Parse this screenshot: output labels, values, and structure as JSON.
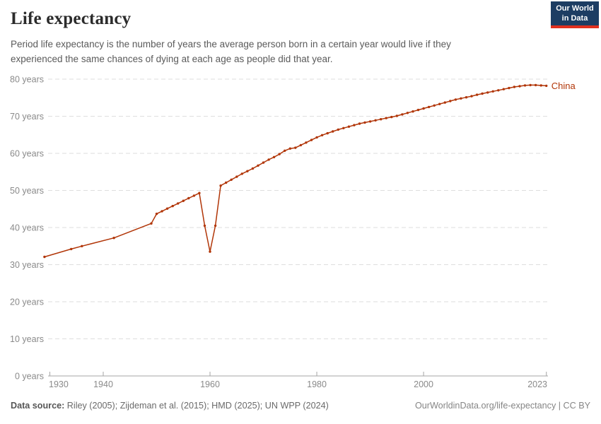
{
  "header": {
    "title": "Life expectancy",
    "subtitle_line1": "Period life expectancy is the number of years the average person born in a certain year would live if they",
    "subtitle_line2": "experienced the same chances of dying at each age as people did that year.",
    "logo": {
      "line1": "Our World",
      "line2": "in Data"
    }
  },
  "colors": {
    "accent": "#b13507",
    "logo_bg": "#1d3d63",
    "logo_accent": "#e0301e",
    "gridline": "#dedede",
    "axis": "#a5a5a5",
    "tick_label": "#8a8a8a"
  },
  "chart_data": {
    "type": "line",
    "title": "Life expectancy",
    "entity": "China",
    "xlabel": "",
    "ylabel": "",
    "xlim": [
      1929,
      2023
    ],
    "ylim": [
      0,
      80
    ],
    "grid": "horizontal-dashed",
    "legend_position": "line-end-label",
    "x_ticks": [
      {
        "value": 1930,
        "label": "1930"
      },
      {
        "value": 1940,
        "label": "1940"
      },
      {
        "value": 1960,
        "label": "1960"
      },
      {
        "value": 1980,
        "label": "1980"
      },
      {
        "value": 2000,
        "label": "2000"
      },
      {
        "value": 2023,
        "label": "2023"
      }
    ],
    "y_ticks": [
      {
        "value": 0,
        "label": "0 years"
      },
      {
        "value": 10,
        "label": "10 years"
      },
      {
        "value": 20,
        "label": "20 years"
      },
      {
        "value": 30,
        "label": "30 years"
      },
      {
        "value": 40,
        "label": "40 years"
      },
      {
        "value": 50,
        "label": "50 years"
      },
      {
        "value": 60,
        "label": "60 years"
      },
      {
        "value": 70,
        "label": "70 years"
      },
      {
        "value": 80,
        "label": "80 years"
      }
    ],
    "series": [
      {
        "name": "China",
        "color": "#b13507",
        "points": [
          [
            1929,
            32.1
          ],
          [
            1934,
            34.2
          ],
          [
            1936,
            35.0
          ],
          [
            1942,
            37.2
          ],
          [
            1949,
            41.1
          ],
          [
            1950,
            43.7
          ],
          [
            1951,
            44.4
          ],
          [
            1952,
            45.1
          ],
          [
            1953,
            45.8
          ],
          [
            1954,
            46.5
          ],
          [
            1955,
            47.2
          ],
          [
            1956,
            47.9
          ],
          [
            1957,
            48.6
          ],
          [
            1958,
            49.3
          ],
          [
            1959,
            40.5
          ],
          [
            1960,
            33.5
          ],
          [
            1961,
            40.5
          ],
          [
            1962,
            51.3
          ],
          [
            1963,
            52.1
          ],
          [
            1964,
            52.9
          ],
          [
            1965,
            53.7
          ],
          [
            1966,
            54.5
          ],
          [
            1967,
            55.2
          ],
          [
            1968,
            55.9
          ],
          [
            1969,
            56.7
          ],
          [
            1970,
            57.5
          ],
          [
            1971,
            58.3
          ],
          [
            1972,
            59.0
          ],
          [
            1973,
            59.8
          ],
          [
            1974,
            60.7
          ],
          [
            1975,
            61.3
          ],
          [
            1976,
            61.5
          ],
          [
            1977,
            62.2
          ],
          [
            1978,
            62.9
          ],
          [
            1979,
            63.6
          ],
          [
            1980,
            64.3
          ],
          [
            1981,
            64.9
          ],
          [
            1982,
            65.4
          ],
          [
            1983,
            65.9
          ],
          [
            1984,
            66.4
          ],
          [
            1985,
            66.8
          ],
          [
            1986,
            67.2
          ],
          [
            1987,
            67.6
          ],
          [
            1988,
            68.0
          ],
          [
            1989,
            68.3
          ],
          [
            1990,
            68.6
          ],
          [
            1991,
            68.9
          ],
          [
            1992,
            69.2
          ],
          [
            1993,
            69.5
          ],
          [
            1994,
            69.8
          ],
          [
            1995,
            70.1
          ],
          [
            1996,
            70.5
          ],
          [
            1997,
            70.9
          ],
          [
            1998,
            71.3
          ],
          [
            1999,
            71.7
          ],
          [
            2000,
            72.1
          ],
          [
            2001,
            72.5
          ],
          [
            2002,
            72.9
          ],
          [
            2003,
            73.3
          ],
          [
            2004,
            73.7
          ],
          [
            2005,
            74.1
          ],
          [
            2006,
            74.5
          ],
          [
            2007,
            74.8
          ],
          [
            2008,
            75.1
          ],
          [
            2009,
            75.4
          ],
          [
            2010,
            75.8
          ],
          [
            2011,
            76.1
          ],
          [
            2012,
            76.4
          ],
          [
            2013,
            76.7
          ],
          [
            2014,
            77.0
          ],
          [
            2015,
            77.3
          ],
          [
            2016,
            77.6
          ],
          [
            2017,
            77.9
          ],
          [
            2018,
            78.1
          ],
          [
            2019,
            78.3
          ],
          [
            2020,
            78.4
          ],
          [
            2021,
            78.4
          ],
          [
            2022,
            78.3
          ],
          [
            2023,
            78.2
          ]
        ]
      }
    ]
  },
  "footer": {
    "source_label": "Data source:",
    "source_text": "Riley (2005); Zijdeman et al. (2015); HMD (2025); UN WPP (2024)",
    "link_text": "OurWorldinData.org/life-expectancy | CC BY"
  }
}
